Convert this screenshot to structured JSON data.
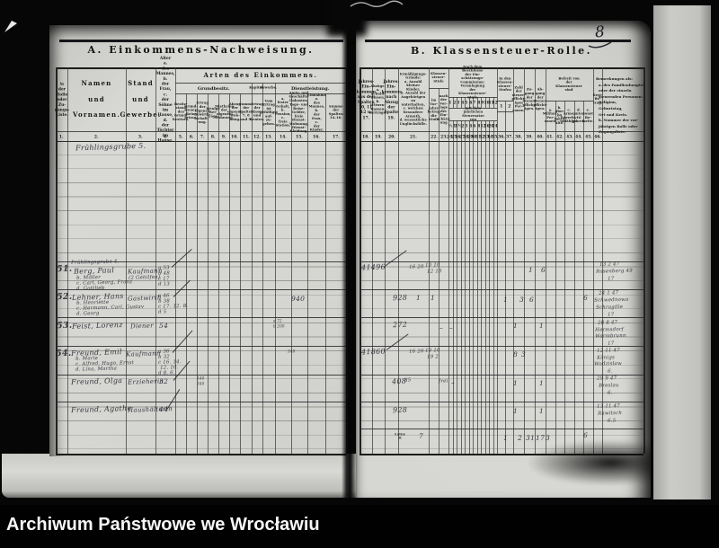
{
  "footer": {
    "archive_label": "Archiwum Państwowe we Wrocławiu"
  },
  "page_number": "8",
  "left_page": {
    "title": "A. Einkommens-Nachweisung.",
    "group_arten": "Arten des Einkommens.",
    "groups": {
      "grundbesitz": "Grundbesitz.",
      "kapital": "Kapital.",
      "gewerbe": "Gewerbe.",
      "dienst": "Dienstleistung."
    },
    "columns": [
      "№\nder\nRolle\noder\nZu-\ngangs-\nListe.",
      "Namen\nund\nVornamen.",
      "Stand\nund\nGewerbe.",
      "Alter\na.\ndes\nMannes,\nb.\nder Frau,\nc.\nder Söhne\nim Hause,\nd.\nder Töchter\nim Hause.",
      "Besitz-\nstand\ndes\nGrund-\nbesitzes.",
      "Grund-\nsteuer-\nRein-\nertrag.",
      "Ertrag\nder\neigenen\nBewirth-\nschaft-\nung.",
      "Wenige\nBei-\nträge.",
      "Miethzins\nder\neigenen\nWohnung.",
      "Abzug\nder\neigenen\nWoh-\nnung.",
      "Summe\nder\nSpalten\n7, 8\nund 9.",
      "Ertrag\nder\nZinsen\nund\nRenten.",
      "Vom\nErtrag\nist\ngefälligst\nauf-\nzu-\ngeben.",
      "a.\nfester\nGehalt,\nb.\nPension,\nc.\nfreie\nStation.",
      "Amts- und\nGeschäfts-\nUnkosten,\nTage- und\nReise-Gelder,\nfreie Dienst-\nWohnung,\nDienst-\nKleidung.",
      "Einnahme\na.\ndes\nMannes,\nb.\nder\nFrau,\nc.\nder\nKinder.",
      "Summe\nder\nSpalten\n14–16."
    ],
    "col_nums": [
      "1.",
      "2.",
      "3.",
      "4.",
      "5.",
      "6.",
      "7.",
      "8.",
      "9.",
      "10.",
      "11.",
      "12.",
      "13.",
      "14.",
      "15.",
      "16.",
      "17."
    ],
    "street_line": "Frühlingsgrube 5."
  },
  "right_page": {
    "title": "B. Klassensteuer-Rolle.",
    "columns": {
      "c18": "Jahres-\nEin-\nkommen\naus den\nSpalten\n10, 11,\n12 u. 17.",
      "c19": "Abzüge.\na.\nSchuld-\nZinsen,\nb.\nWitwen-\nKassen-\nBeiträge.",
      "c20": "Jahres-\nEin-\nkommen\nnach\nAbzug\nder\nSpalte 19.",
      "c21": "Ermäßigungs-\nGründe:\na. Anzahl\nkleiner Kinder,\nb. Anzahl der\nAngehörigen zu\nunterhalten,\nc. welchen\nbesondere\nArmuth,\nd. wesentliche\nUnglücksfälle.",
      "c22": "im\nVor-\njahre\nbetrug\ndie\nStufe",
      "c23": "nach\nder\nVor-\nlage\nder Ein-\nschätz-\nung",
      "c38": "Zahl der\nsteuer-\npflicht-\nigen\nPer-\nsonen.",
      "c39": "Zu-\ngang\nder\nSteuer-\npflicht-\nigen.",
      "c40": "Ab-\ngang\nder\nSteuer-\npflicht-\nigen.",
      "c46": "Rest-\nBe-\ntrag."
    },
    "group_stufe": "Klassen-\nsteuer-\nStufe",
    "group_veranlagung": "Nach dem Beschlusse der Ein-\nschätzungs-Commission:\nVeranlagung der Klassensteuer-Stufe",
    "veranlagung_cells": [
      "1",
      "2",
      "3",
      "4",
      "5",
      "6",
      "7",
      "8",
      "9",
      "10",
      "11",
      "12"
    ],
    "steuersatz_label": "mit dem jährlichen Steuersatze\nvon",
    "steuersatz_values": [
      "½",
      "1",
      "1½",
      "2",
      "3",
      "4",
      "6",
      "8",
      "12",
      "16",
      "20",
      "24"
    ],
    "group_in_stufen": "In den\nKlassen-\nsteuer-\nStufen",
    "in_stufen_cells": [
      "1",
      "2"
    ],
    "group_befreit": "Befreit von der\nKlassensteuer sind",
    "befreit_cols": [
      "a.\nMilitair-\nPer-\nsonen.",
      "b.\nüber 60\nJahre\nAlte.",
      "c.\nArme,\nErwerbs-\nunfähige.",
      "d.\nunter 16\nJahren.",
      "e.\nsonst\nBe-\nfreite."
    ],
    "bemerk_legend": [
      "Bemerkungen als:",
      "a. des Familienhauptes",
      "oder der einzeln",
      "steuernden Personen:",
      "Religion,",
      "Geburtstag,",
      "Ort und Kreis.",
      "b. Nummer der vor-",
      "jährigen Rolle oder",
      "Zugangsliste."
    ],
    "col_nums": [
      "18.",
      "19.",
      "20.",
      "21.",
      "22.",
      "23.",
      "24.",
      "25.",
      "26.",
      "27.",
      "28.",
      "29.",
      "30.",
      "31.",
      "32.",
      "33.",
      "34.",
      "35.",
      "36.",
      "37.",
      "38.",
      "39.",
      "40.",
      "41.",
      "42.",
      "43.",
      "44.",
      "45.",
      "46."
    ],
    "latus": {
      "label": "Latus ℳ",
      "page_sum": "7",
      "values": [
        "1",
        "2",
        "31",
        "17",
        "3",
        "6"
      ]
    }
  },
  "rows": [
    {
      "no": "51.",
      "street": "Frühlingsgrube 4.",
      "name": "Berg, Paul",
      "subs": [
        "b. Möller",
        "c. Carl, Georg, Franz",
        "d. Gottlieb"
      ],
      "stand": "Kaufmann",
      "stand2": "(2 Gehilfen)",
      "alter": [
        "a 53",
        "b 48",
        "c 17",
        "d 13"
      ],
      "einkommen": "41496",
      "stufe_a": "16 20",
      "stufe_b": "10 10",
      "stufe_c": "12 10",
      "s1": "1",
      "s2": "6",
      "bem": [
        "13 2 47",
        "Rosenberg 49",
        "17"
      ]
    },
    {
      "no": "52.",
      "name": "Lehner, Hans",
      "subs": [
        "b. Henriette",
        "c. Hermann, Carl, Gustav",
        "d. Georg"
      ],
      "stand": "Gastwirth",
      "alter": [
        "a 46",
        "b 38",
        "c 17. 12. 8.",
        "d 5"
      ],
      "l1": "940",
      "einkommen": "928",
      "one_a": "1",
      "one_b": "1",
      "s1": "1",
      "s2": "3",
      "s3": "6",
      "s4": "6",
      "bem": [
        "24 1 47",
        "Schwednowa",
        "Schragille",
        "17"
      ]
    },
    {
      "no": "53.",
      "name": "Feist, Lorenz",
      "stand": "Diener",
      "alter1": "54",
      "l1": "a 72",
      "l2": "b 200",
      "einkommen": "272",
      "dash1": "–",
      "dash2": "–",
      "s1": "1",
      "s2": "1",
      "bem": [
        "28 8 47",
        "Hermsdorf",
        "Warmbrunn",
        "17"
      ]
    },
    {
      "no": "54.",
      "name": "Freund, Emil",
      "subs": [
        "b. Marie",
        "c. Alfred, Hugo, Ernst",
        "d. Lina, Martha"
      ],
      "stand": "Kaufmann",
      "alter": [
        "a 36",
        "b 32",
        "c 16. 14.",
        "12. 10.",
        "d 8. 6."
      ],
      "l1": "340",
      "einkommen": "41860",
      "stufe_a": "16 20",
      "stufe_b": "10 10",
      "stufe_c": "19 2",
      "s1": "8",
      "s2": "3",
      "bem": [
        "12 11 47",
        "Königs",
        "Wodzislaw",
        "6."
      ]
    },
    {
      "name": "Freund, Olga",
      "stand": "Erzieherin",
      "alter1": "32",
      "l1": "140",
      "l2": "340",
      "einkommen": "408",
      "e2": "85",
      "frei": "frei",
      "dash1": "–",
      "s1": "1",
      "s2": "1",
      "bem": [
        "29 9 47",
        "Breslau",
        "6."
      ]
    },
    {
      "name": "Freund, Agathe",
      "stand": "Haushälterin",
      "alter1": "44",
      "einkommen": "928",
      "s1": "1",
      "s2": "1",
      "bem": [
        "13 11 47",
        "Rawitsch",
        "6.5"
      ]
    }
  ]
}
